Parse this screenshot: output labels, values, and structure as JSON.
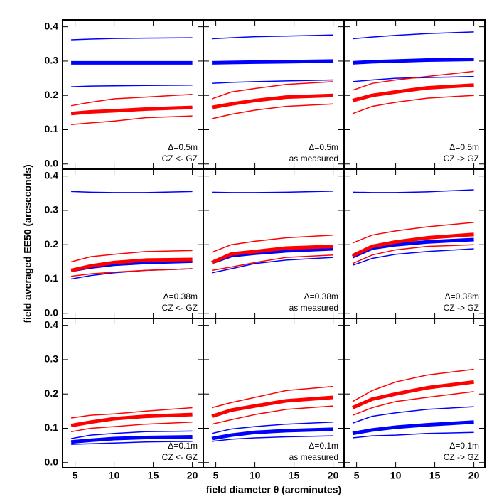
{
  "xlabel": "field diameter θ (arcminutes)",
  "ylabel": "field averaged EE50 (arcseconds)",
  "chart_data": [
    {
      "type": "line",
      "annotation": [
        "Δ=0.5m",
        "CZ <- GZ"
      ],
      "x": [
        4.5,
        7,
        10,
        14,
        20
      ],
      "xlim": [
        3.4,
        21.4
      ],
      "xticks": [
        5,
        10,
        15,
        20
      ],
      "ylim": [
        -0.015,
        0.42
      ],
      "yticks": [
        {
          "value": 0,
          "label": "0.0"
        },
        0.1,
        0.2,
        0.3,
        0.4
      ],
      "series": [
        {
          "color": "#0000ff",
          "width": 1.5,
          "values": [
            0.362,
            0.364,
            0.366,
            0.367,
            0.368
          ]
        },
        {
          "color": "#0000ff",
          "width": 5,
          "values": [
            0.295,
            0.295,
            0.295,
            0.295,
            0.295
          ]
        },
        {
          "color": "#0000ff",
          "width": 1.5,
          "values": [
            0.225,
            0.227,
            0.228,
            0.229,
            0.23
          ]
        },
        {
          "color": "#ff0000",
          "width": 1.5,
          "values": [
            0.17,
            0.18,
            0.19,
            0.195,
            0.203
          ]
        },
        {
          "color": "#ff0000",
          "width": 5,
          "values": [
            0.147,
            0.152,
            0.155,
            0.16,
            0.165
          ]
        },
        {
          "color": "#ff0000",
          "width": 1.5,
          "values": [
            0.115,
            0.12,
            0.125,
            0.135,
            0.14
          ]
        }
      ]
    },
    {
      "type": "line",
      "annotation": [
        "Δ=0.5m",
        "as measured"
      ],
      "x": [
        4.5,
        7,
        10,
        14,
        20
      ],
      "xlim": [
        3.4,
        21.4
      ],
      "xticks": [
        5,
        10,
        15,
        20
      ],
      "ylim": [
        -0.015,
        0.42
      ],
      "yticks": [
        {
          "value": 0,
          "label": "0.0"
        },
        0.1,
        0.2,
        0.3,
        0.4
      ],
      "series": [
        {
          "color": "#0000ff",
          "width": 1.5,
          "values": [
            0.365,
            0.368,
            0.371,
            0.373,
            0.376
          ]
        },
        {
          "color": "#0000ff",
          "width": 5,
          "values": [
            0.295,
            0.296,
            0.297,
            0.298,
            0.3
          ]
        },
        {
          "color": "#0000ff",
          "width": 1.5,
          "values": [
            0.235,
            0.238,
            0.24,
            0.242,
            0.245
          ]
        },
        {
          "color": "#ff0000",
          "width": 1.5,
          "values": [
            0.19,
            0.21,
            0.22,
            0.232,
            0.24
          ]
        },
        {
          "color": "#ff0000",
          "width": 5,
          "values": [
            0.165,
            0.175,
            0.185,
            0.195,
            0.2
          ]
        },
        {
          "color": "#ff0000",
          "width": 1.5,
          "values": [
            0.132,
            0.145,
            0.157,
            0.168,
            0.175
          ]
        }
      ]
    },
    {
      "type": "line",
      "annotation": [
        "Δ=0.5m",
        "CZ -> GZ"
      ],
      "x": [
        4.5,
        7,
        10,
        14,
        20
      ],
      "xlim": [
        3.4,
        21.4
      ],
      "xticks": [
        5,
        10,
        15,
        20
      ],
      "ylim": [
        -0.015,
        0.42
      ],
      "yticks": [
        {
          "value": 0,
          "label": "0.0"
        },
        0.1,
        0.2,
        0.3,
        0.4
      ],
      "series": [
        {
          "color": "#0000ff",
          "width": 1.5,
          "values": [
            0.365,
            0.37,
            0.375,
            0.38,
            0.385
          ]
        },
        {
          "color": "#0000ff",
          "width": 5,
          "values": [
            0.295,
            0.298,
            0.3,
            0.303,
            0.305
          ]
        },
        {
          "color": "#0000ff",
          "width": 1.5,
          "values": [
            0.24,
            0.245,
            0.25,
            0.252,
            0.255
          ]
        },
        {
          "color": "#ff0000",
          "width": 1.5,
          "values": [
            0.215,
            0.235,
            0.245,
            0.255,
            0.27
          ]
        },
        {
          "color": "#ff0000",
          "width": 5,
          "values": [
            0.185,
            0.2,
            0.21,
            0.222,
            0.23
          ]
        },
        {
          "color": "#ff0000",
          "width": 1.5,
          "values": [
            0.147,
            0.168,
            0.18,
            0.192,
            0.2
          ]
        }
      ]
    },
    {
      "type": "line",
      "annotation": [
        "Δ=0.38m",
        "CZ <- GZ"
      ],
      "x": [
        4.5,
        7,
        10,
        14,
        20
      ],
      "xlim": [
        3.4,
        21.4
      ],
      "xticks": [
        5,
        10,
        15,
        20
      ],
      "ylim": [
        -0.015,
        0.42
      ],
      "yticks": [
        {
          "value": 0,
          "label": "0.0"
        },
        0.1,
        0.2,
        0.3,
        0.4
      ],
      "series": [
        {
          "color": "#0000ff",
          "width": 1.5,
          "values": [
            0.355,
            0.353,
            0.352,
            0.352,
            0.355
          ]
        },
        {
          "color": "#0000ff",
          "width": 5,
          "values": [
            0.125,
            0.135,
            0.143,
            0.148,
            0.152
          ]
        },
        {
          "color": "#0000ff",
          "width": 1.5,
          "values": [
            0.1,
            0.11,
            0.118,
            0.125,
            0.13
          ]
        },
        {
          "color": "#ff0000",
          "width": 1.5,
          "values": [
            0.15,
            0.165,
            0.172,
            0.18,
            0.183
          ]
        },
        {
          "color": "#ff0000",
          "width": 5,
          "values": [
            0.125,
            0.138,
            0.148,
            0.155,
            0.157
          ]
        },
        {
          "color": "#ff0000",
          "width": 1.5,
          "values": [
            0.108,
            0.115,
            0.12,
            0.125,
            0.13
          ]
        }
      ]
    },
    {
      "type": "line",
      "annotation": [
        "Δ=0.38m",
        "as measured"
      ],
      "x": [
        4.5,
        7,
        10,
        14,
        20
      ],
      "xlim": [
        3.4,
        21.4
      ],
      "xticks": [
        5,
        10,
        15,
        20
      ],
      "ylim": [
        -0.015,
        0.42
      ],
      "yticks": [
        {
          "value": 0,
          "label": "0.0"
        },
        0.1,
        0.2,
        0.3,
        0.4
      ],
      "series": [
        {
          "color": "#0000ff",
          "width": 1.5,
          "values": [
            0.353,
            0.352,
            0.352,
            0.353,
            0.356
          ]
        },
        {
          "color": "#0000ff",
          "width": 5,
          "values": [
            0.148,
            0.168,
            0.175,
            0.182,
            0.188
          ]
        },
        {
          "color": "#0000ff",
          "width": 1.5,
          "values": [
            0.118,
            0.13,
            0.145,
            0.155,
            0.163
          ]
        },
        {
          "color": "#ff0000",
          "width": 1.5,
          "values": [
            0.178,
            0.2,
            0.21,
            0.22,
            0.228
          ]
        },
        {
          "color": "#ff0000",
          "width": 5,
          "values": [
            0.148,
            0.173,
            0.18,
            0.19,
            0.195
          ]
        },
        {
          "color": "#ff0000",
          "width": 1.5,
          "values": [
            0.125,
            0.135,
            0.148,
            0.163,
            0.17
          ]
        }
      ]
    },
    {
      "type": "line",
      "annotation": [
        "Δ=0.38m",
        "CZ -> GZ"
      ],
      "x": [
        4.5,
        7,
        10,
        14,
        20
      ],
      "xlim": [
        3.4,
        21.4
      ],
      "xticks": [
        5,
        10,
        15,
        20
      ],
      "ylim": [
        -0.015,
        0.42
      ],
      "yticks": [
        {
          "value": 0,
          "label": "0.0"
        },
        0.1,
        0.2,
        0.3,
        0.4
      ],
      "series": [
        {
          "color": "#0000ff",
          "width": 1.5,
          "values": [
            0.353,
            0.352,
            0.352,
            0.354,
            0.36
          ]
        },
        {
          "color": "#0000ff",
          "width": 5,
          "values": [
            0.165,
            0.19,
            0.2,
            0.208,
            0.215
          ]
        },
        {
          "color": "#0000ff",
          "width": 1.5,
          "values": [
            0.14,
            0.16,
            0.172,
            0.18,
            0.188
          ]
        },
        {
          "color": "#ff0000",
          "width": 1.5,
          "values": [
            0.205,
            0.228,
            0.24,
            0.252,
            0.265
          ]
        },
        {
          "color": "#ff0000",
          "width": 5,
          "values": [
            0.168,
            0.195,
            0.208,
            0.22,
            0.23
          ]
        },
        {
          "color": "#ff0000",
          "width": 1.5,
          "values": [
            0.145,
            0.17,
            0.185,
            0.195,
            0.2
          ]
        }
      ]
    },
    {
      "type": "line",
      "annotation": [
        "Δ=0.1m",
        "CZ <- GZ"
      ],
      "x": [
        4.5,
        7,
        10,
        14,
        20
      ],
      "xlim": [
        3.4,
        21.4
      ],
      "xticks": [
        5,
        10,
        15,
        20
      ],
      "ylim": [
        -0.015,
        0.42
      ],
      "yticks": [
        {
          "value": 0,
          "label": "0.0"
        },
        0.1,
        0.2,
        0.3,
        0.4
      ],
      "series": [
        {
          "color": "#0000ff",
          "width": 1.5,
          "values": [
            0.07,
            0.08,
            0.085,
            0.09,
            0.092
          ]
        },
        {
          "color": "#0000ff",
          "width": 5,
          "values": [
            0.06,
            0.065,
            0.07,
            0.073,
            0.075
          ]
        },
        {
          "color": "#0000ff",
          "width": 1.5,
          "values": [
            0.053,
            0.055,
            0.057,
            0.06,
            0.062
          ]
        },
        {
          "color": "#ff0000",
          "width": 1.5,
          "values": [
            0.13,
            0.138,
            0.142,
            0.15,
            0.16
          ]
        },
        {
          "color": "#ff0000",
          "width": 5,
          "values": [
            0.108,
            0.118,
            0.128,
            0.135,
            0.14
          ]
        },
        {
          "color": "#ff0000",
          "width": 1.5,
          "values": [
            0.09,
            0.1,
            0.105,
            0.112,
            0.118
          ]
        }
      ]
    },
    {
      "type": "line",
      "annotation": [
        "Δ=0.1m",
        "as measured"
      ],
      "x": [
        4.5,
        7,
        10,
        14,
        20
      ],
      "xlim": [
        3.4,
        21.4
      ],
      "xticks": [
        5,
        10,
        15,
        20
      ],
      "ylim": [
        -0.015,
        0.42
      ],
      "yticks": [
        {
          "value": 0,
          "label": "0.0"
        },
        0.1,
        0.2,
        0.3,
        0.4
      ],
      "series": [
        {
          "color": "#0000ff",
          "width": 1.5,
          "values": [
            0.085,
            0.098,
            0.105,
            0.112,
            0.118
          ]
        },
        {
          "color": "#0000ff",
          "width": 5,
          "values": [
            0.07,
            0.08,
            0.088,
            0.093,
            0.097
          ]
        },
        {
          "color": "#0000ff",
          "width": 1.5,
          "values": [
            0.062,
            0.068,
            0.072,
            0.075,
            0.078
          ]
        },
        {
          "color": "#ff0000",
          "width": 1.5,
          "values": [
            0.16,
            0.175,
            0.19,
            0.21,
            0.222
          ]
        },
        {
          "color": "#ff0000",
          "width": 5,
          "values": [
            0.135,
            0.153,
            0.165,
            0.18,
            0.19
          ]
        },
        {
          "color": "#ff0000",
          "width": 1.5,
          "values": [
            0.112,
            0.125,
            0.14,
            0.155,
            0.165
          ]
        }
      ]
    },
    {
      "type": "line",
      "annotation": [
        "Δ=0.1m",
        "CZ -> GZ"
      ],
      "x": [
        4.5,
        7,
        10,
        14,
        20
      ],
      "xlim": [
        3.4,
        21.4
      ],
      "xticks": [
        5,
        10,
        15,
        20
      ],
      "ylim": [
        -0.015,
        0.42
      ],
      "yticks": [
        {
          "value": 0,
          "label": "0.0"
        },
        0.1,
        0.2,
        0.3,
        0.4
      ],
      "series": [
        {
          "color": "#0000ff",
          "width": 1.5,
          "values": [
            0.115,
            0.135,
            0.145,
            0.155,
            0.163
          ]
        },
        {
          "color": "#0000ff",
          "width": 5,
          "values": [
            0.085,
            0.095,
            0.103,
            0.11,
            0.118
          ]
        },
        {
          "color": "#0000ff",
          "width": 1.5,
          "values": [
            0.072,
            0.078,
            0.08,
            0.085,
            0.088
          ]
        },
        {
          "color": "#ff0000",
          "width": 1.5,
          "values": [
            0.178,
            0.21,
            0.235,
            0.255,
            0.272
          ]
        },
        {
          "color": "#ff0000",
          "width": 5,
          "values": [
            0.16,
            0.185,
            0.2,
            0.218,
            0.235
          ]
        },
        {
          "color": "#ff0000",
          "width": 1.5,
          "values": [
            0.138,
            0.16,
            0.178,
            0.19,
            0.207
          ]
        }
      ]
    }
  ]
}
